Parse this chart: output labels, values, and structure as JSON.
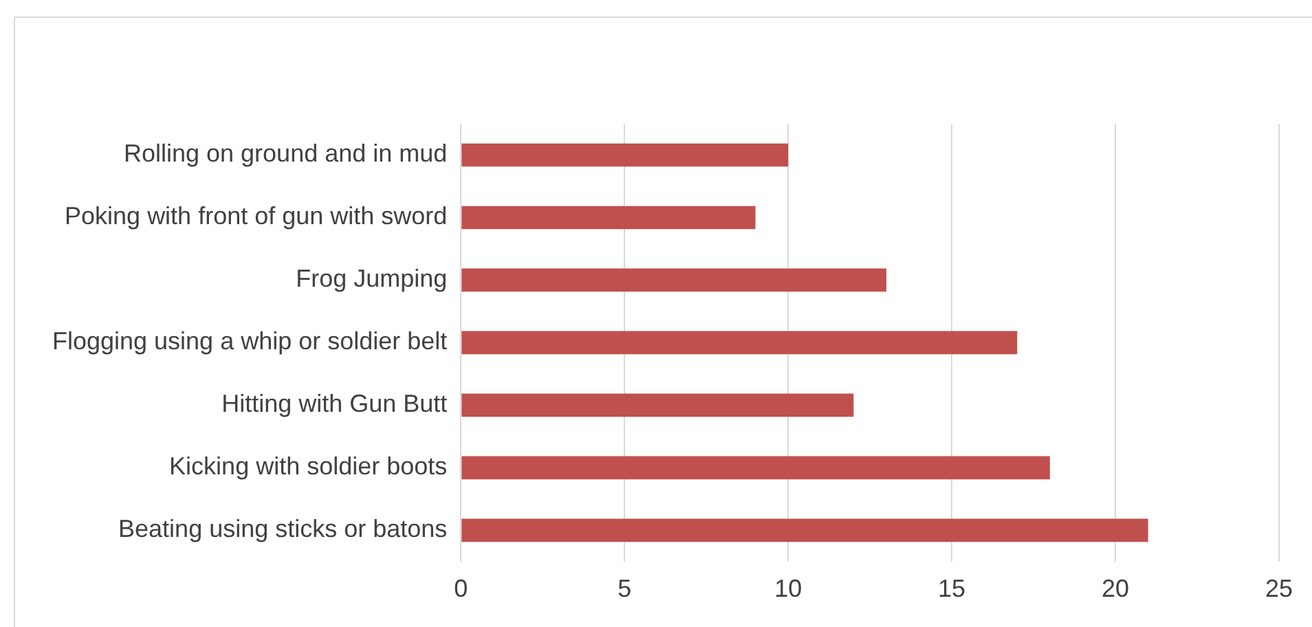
{
  "chart_data": {
    "type": "bar",
    "orientation": "horizontal",
    "categories": [
      "Rolling on ground and in mud",
      "Poking with front of gun with sword",
      "Frog Jumping",
      "Flogging using a whip or soldier belt",
      "Hitting with Gun Butt",
      "Kicking with soldier boots",
      "Beating using sticks or batons"
    ],
    "values": [
      10,
      9,
      13,
      17,
      12,
      18,
      21
    ],
    "color": "#c0504d",
    "xlim": [
      0,
      25
    ],
    "xticks": [
      0,
      5,
      10,
      15,
      20,
      25
    ],
    "grid": "x",
    "legend": false
  }
}
